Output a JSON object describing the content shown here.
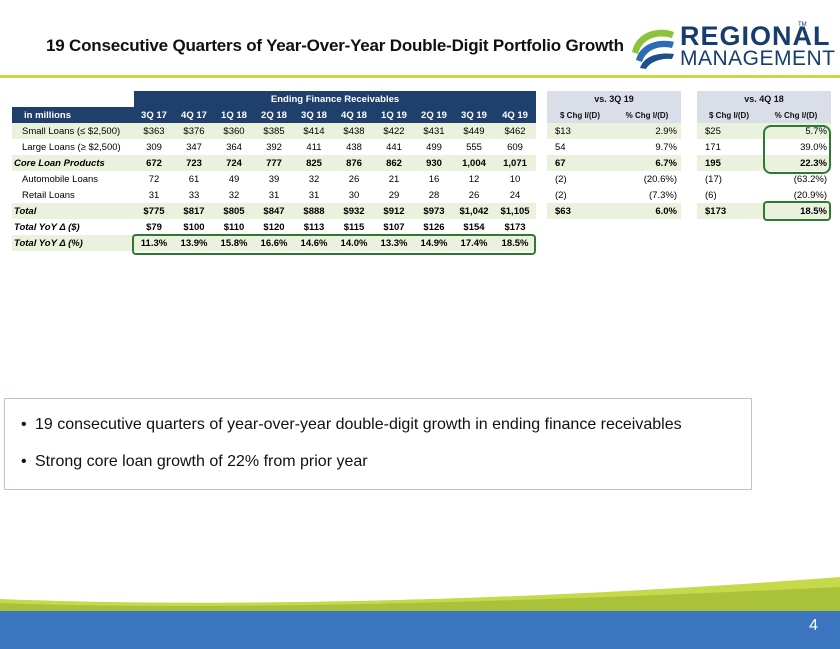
{
  "title": "19 Consecutive Quarters of Year-Over-Year Double-Digit Portfolio Growth",
  "logo": {
    "line1": "REGIONAL",
    "line2": "MANAGEMENT",
    "tm": "TM"
  },
  "colors": {
    "navy": "#1f3f6d",
    "accent_green": "#c5d94a",
    "row_green": "#eaf1dd",
    "highlight": "#2e7a33",
    "footer_blue": "#3b75c0"
  },
  "table": {
    "band_label": "Ending Finance Receivables",
    "unit_label": "in millions",
    "periods": [
      "3Q 17",
      "4Q 17",
      "1Q 18",
      "2Q 18",
      "3Q 18",
      "4Q 18",
      "1Q 19",
      "2Q 19",
      "3Q 19",
      "4Q 19"
    ],
    "rows": [
      {
        "label": "Small Loans (≤ $2,500)",
        "values": [
          "$363",
          "$376",
          "$360",
          "$385",
          "$414",
          "$438",
          "$422",
          "$431",
          "$449",
          "$462"
        ]
      },
      {
        "label": "Large Loans (≥ $2,500)",
        "values": [
          "309",
          "347",
          "364",
          "392",
          "411",
          "438",
          "441",
          "499",
          "555",
          "609"
        ]
      },
      {
        "label": "Core Loan Products",
        "values": [
          "672",
          "723",
          "724",
          "777",
          "825",
          "876",
          "862",
          "930",
          "1,004",
          "1,071"
        ]
      },
      {
        "label": "Automobile Loans",
        "values": [
          "72",
          "61",
          "49",
          "39",
          "32",
          "26",
          "21",
          "16",
          "12",
          "10"
        ]
      },
      {
        "label": "Retail Loans",
        "values": [
          "31",
          "33",
          "32",
          "31",
          "31",
          "30",
          "29",
          "28",
          "26",
          "24"
        ]
      },
      {
        "label": "Total",
        "values": [
          "$775",
          "$817",
          "$805",
          "$847",
          "$888",
          "$932",
          "$912",
          "$973",
          "$1,042",
          "$1,105"
        ]
      },
      {
        "label": "Total YoY Δ ($)",
        "values": [
          "$79",
          "$100",
          "$110",
          "$120",
          "$113",
          "$115",
          "$107",
          "$126",
          "$154",
          "$173"
        ]
      },
      {
        "label": "Total YoY Δ (%)",
        "values": [
          "11.3%",
          "13.9%",
          "15.8%",
          "16.6%",
          "14.6%",
          "14.0%",
          "13.3%",
          "14.9%",
          "17.4%",
          "18.5%"
        ]
      }
    ]
  },
  "vs3q": {
    "band_label": "vs. 3Q 19",
    "col1": "$ Chg I/(D)",
    "col2": "% Chg I/(D)",
    "rows": [
      [
        "$13",
        "2.9%"
      ],
      [
        "54",
        "9.7%"
      ],
      [
        "67",
        "6.7%"
      ],
      [
        "(2)",
        "(20.6%)"
      ],
      [
        "(2)",
        "(7.3%)"
      ],
      [
        "$63",
        "6.0%"
      ]
    ]
  },
  "vs4q": {
    "band_label": "vs. 4Q 18",
    "col1": "$ Chg I/(D)",
    "col2": "% Chg I/(D)",
    "rows": [
      [
        "$25",
        "5.7%"
      ],
      [
        "171",
        "39.0%"
      ],
      [
        "195",
        "22.3%"
      ],
      [
        "(17)",
        "(63.2%)"
      ],
      [
        "(6)",
        "(20.9%)"
      ],
      [
        "$173",
        "18.5%"
      ]
    ]
  },
  "bullets": [
    "19 consecutive quarters of year-over-year double-digit growth in ending finance receivables",
    "Strong core loan growth of 22% from prior year"
  ],
  "page_number": "4"
}
